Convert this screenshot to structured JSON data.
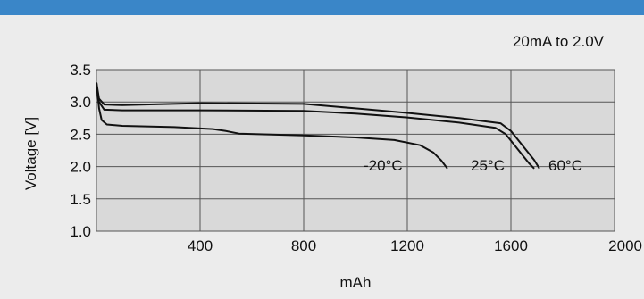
{
  "colors": {
    "top_band": "#3a86c8",
    "background": "#ececec",
    "plot_background": "#d9d9d9",
    "grid": "#555555",
    "curve": "#111111"
  },
  "chart_data": {
    "type": "line",
    "title": "",
    "annotation": "20mA to 2.0V",
    "xlabel": "mAh",
    "ylabel": "Voltage [V]",
    "xlim": [
      0,
      2000
    ],
    "ylim": [
      1.0,
      3.5
    ],
    "x_ticks": [
      400,
      800,
      1200,
      1600,
      2000
    ],
    "y_ticks": [
      1.0,
      1.5,
      2.0,
      2.5,
      3.0,
      3.5
    ],
    "x_tick_labels": [
      "400",
      "800",
      "1200",
      "1600",
      "2000"
    ],
    "y_tick_labels": [
      "1.0",
      "1.5",
      "2.0",
      "2.5",
      "3.0",
      "3.5"
    ],
    "grid": true,
    "series": [
      {
        "name": "-20°C",
        "points": [
          [
            0,
            3.3
          ],
          [
            10,
            2.9
          ],
          [
            20,
            2.72
          ],
          [
            40,
            2.65
          ],
          [
            100,
            2.63
          ],
          [
            300,
            2.61
          ],
          [
            450,
            2.58
          ],
          [
            500,
            2.55
          ],
          [
            550,
            2.51
          ],
          [
            800,
            2.48
          ],
          [
            1000,
            2.45
          ],
          [
            1150,
            2.41
          ],
          [
            1250,
            2.33
          ],
          [
            1300,
            2.22
          ],
          [
            1330,
            2.1
          ],
          [
            1355,
            1.97
          ]
        ]
      },
      {
        "name": "25°C",
        "points": [
          [
            0,
            3.25
          ],
          [
            10,
            3.0
          ],
          [
            30,
            2.88
          ],
          [
            100,
            2.87
          ],
          [
            400,
            2.87
          ],
          [
            800,
            2.86
          ],
          [
            1000,
            2.82
          ],
          [
            1200,
            2.76
          ],
          [
            1400,
            2.68
          ],
          [
            1540,
            2.6
          ],
          [
            1580,
            2.5
          ],
          [
            1610,
            2.35
          ],
          [
            1640,
            2.2
          ],
          [
            1670,
            2.05
          ],
          [
            1690,
            1.97
          ]
        ]
      },
      {
        "name": "60°C",
        "points": [
          [
            0,
            3.3
          ],
          [
            10,
            3.05
          ],
          [
            30,
            2.96
          ],
          [
            100,
            2.95
          ],
          [
            400,
            2.98
          ],
          [
            800,
            2.97
          ],
          [
            1000,
            2.9
          ],
          [
            1200,
            2.83
          ],
          [
            1400,
            2.75
          ],
          [
            1560,
            2.67
          ],
          [
            1600,
            2.55
          ],
          [
            1630,
            2.4
          ],
          [
            1660,
            2.25
          ],
          [
            1690,
            2.1
          ],
          [
            1710,
            1.97
          ]
        ]
      }
    ]
  }
}
